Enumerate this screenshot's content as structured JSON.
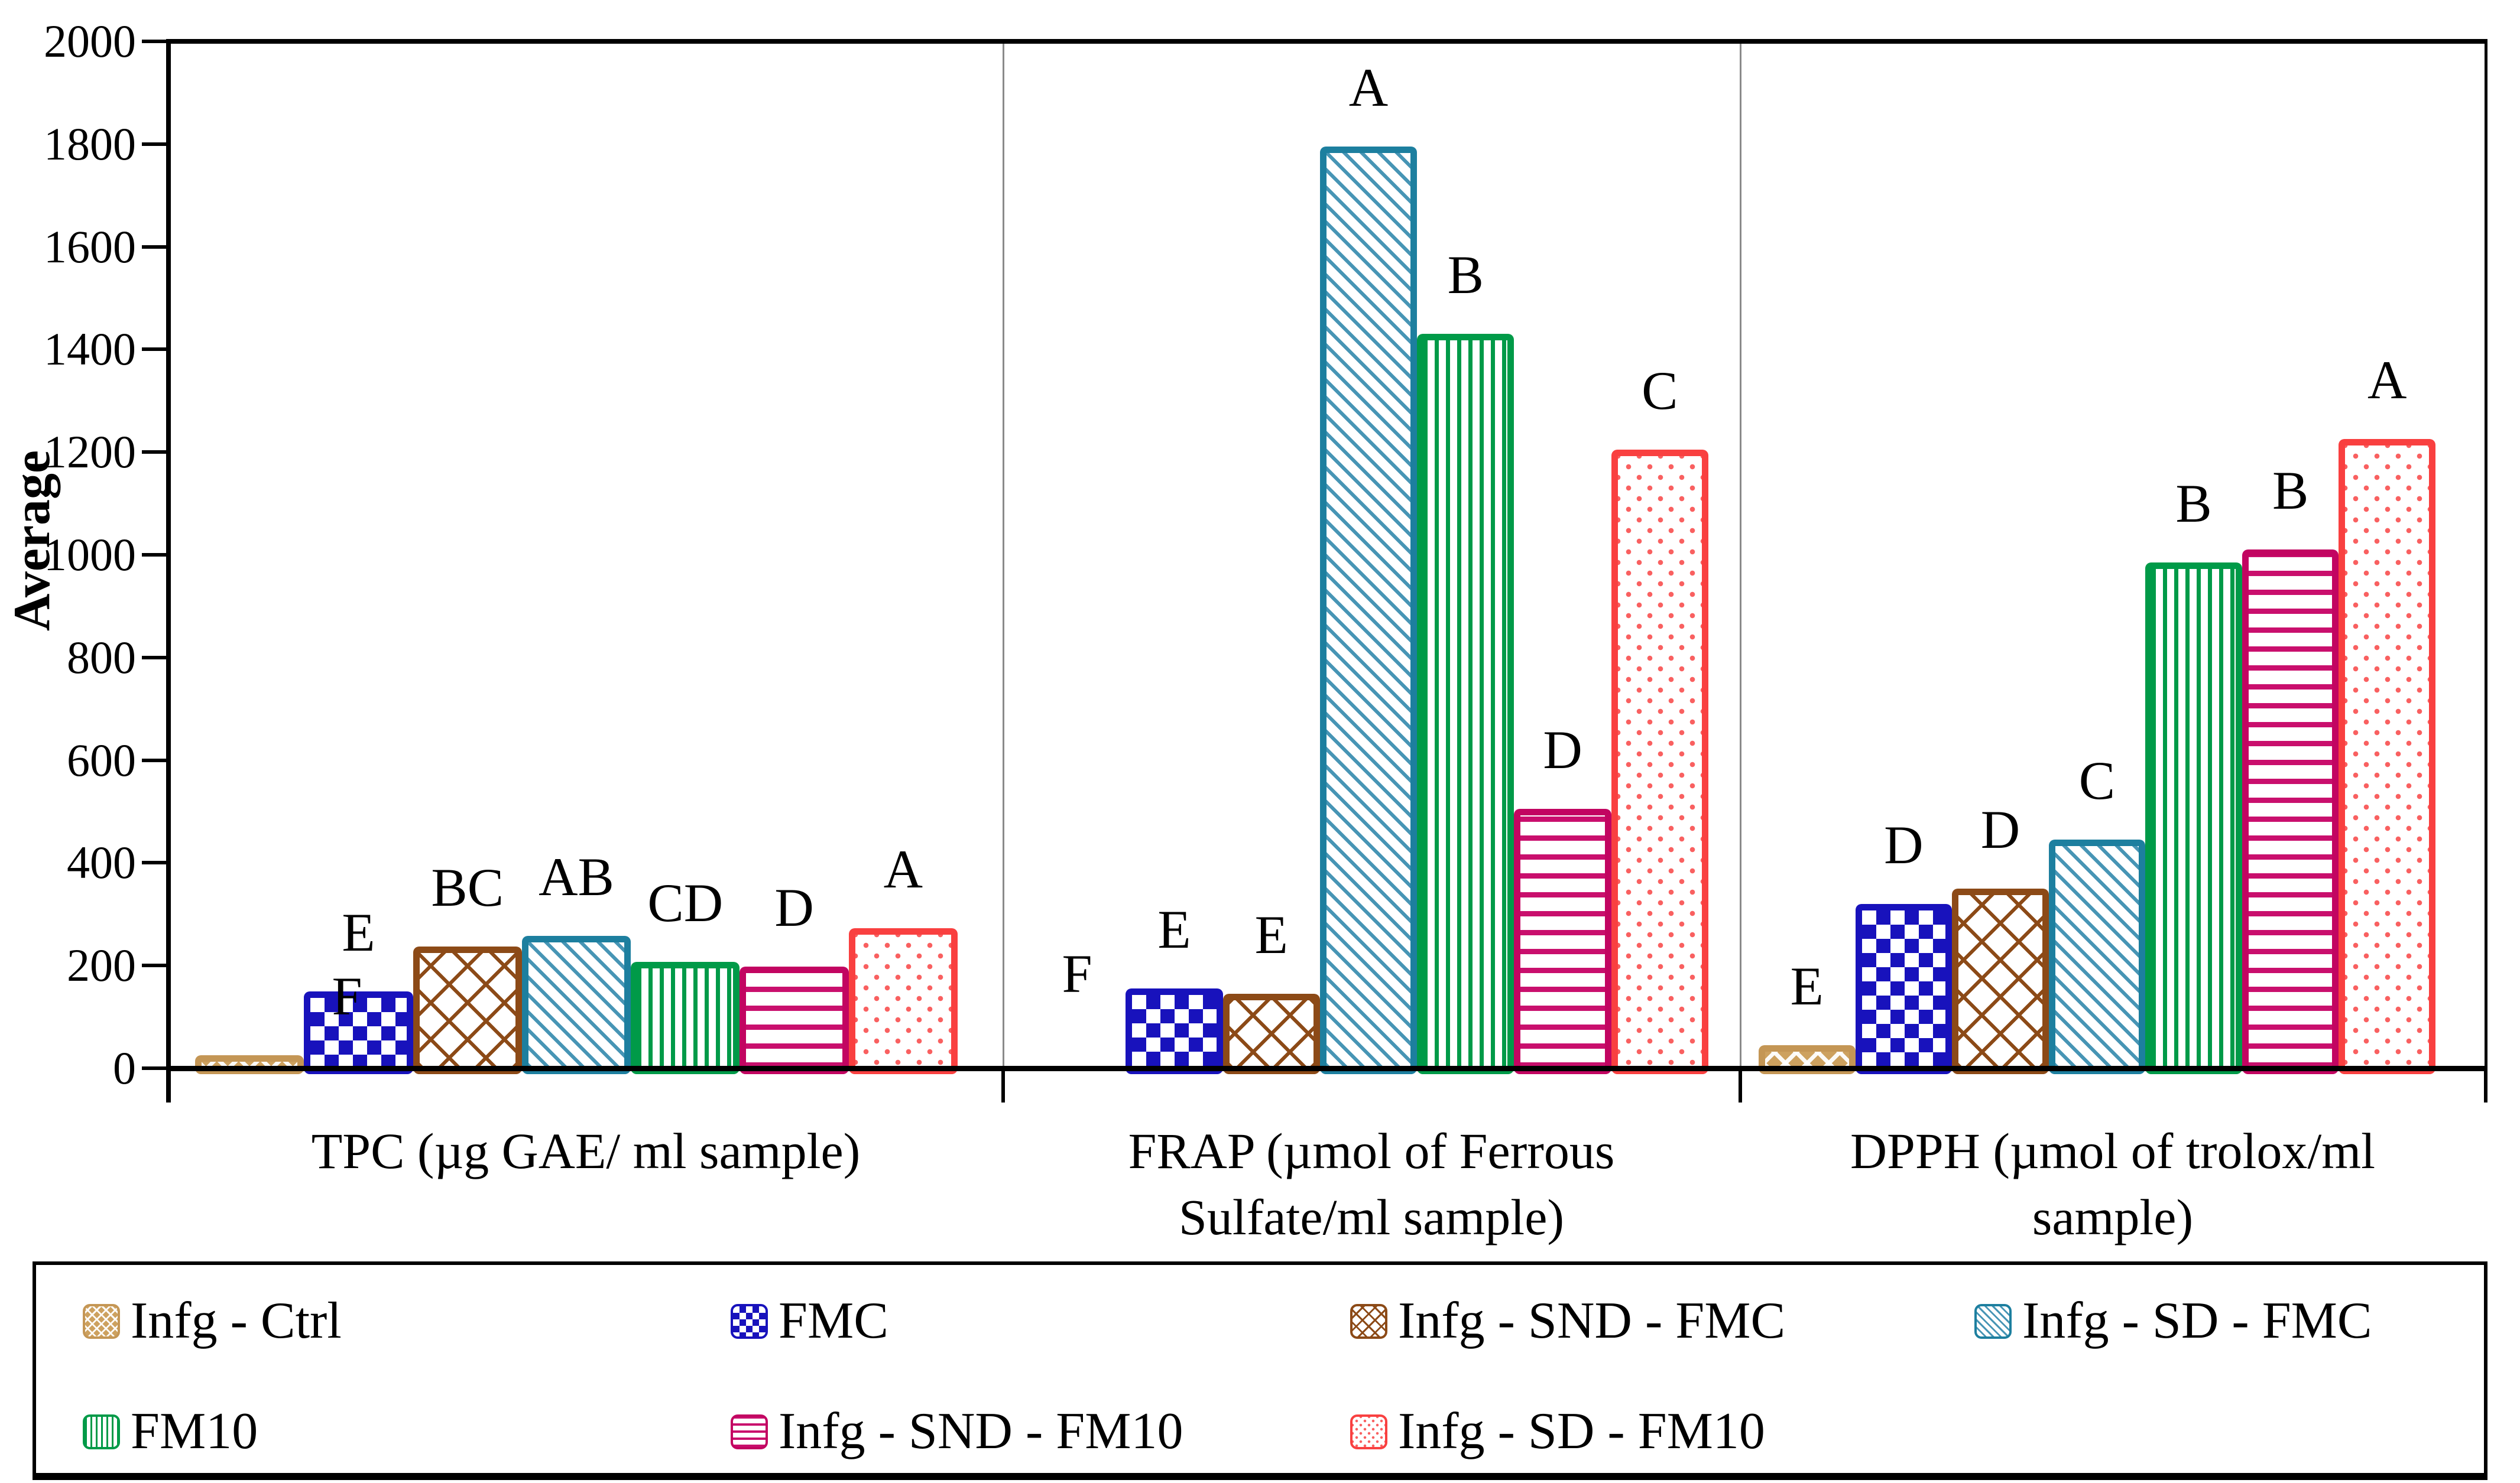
{
  "chart_data": {
    "type": "bar",
    "title": "",
    "xlabel": "",
    "ylabel": "Average",
    "ylim": [
      0,
      2000
    ],
    "ytick_step": 200,
    "grid": false,
    "legend_position": "bottom",
    "categories": [
      "TPC (µg GAE/ ml sample)",
      "FRAP (µmol of Ferrous Sulfate/ml sample)",
      "DPPH (µmol of trolox/ml sample)"
    ],
    "category_lines": [
      [
        "TPC (µg GAE/ ml sample)"
      ],
      [
        "FRAP (µmol of Ferrous",
        "Sulfate/ml sample)"
      ],
      [
        "DPPH (µmol of trolox/ml",
        "sample)"
      ]
    ],
    "series": [
      {
        "name": "Infg - Ctrl",
        "color": "#C49655",
        "pattern": "tan-weave",
        "values": [
          25,
          0,
          45
        ],
        "letters": [
          "F",
          "F",
          "E"
        ]
      },
      {
        "name": "FMC",
        "color": "#1812BC",
        "pattern": "blue-checker",
        "values": [
          150,
          155,
          320
        ],
        "letters": [
          "E",
          "E",
          "D"
        ]
      },
      {
        "name": "Infg - SND - FMC",
        "color": "#8C4A17",
        "pattern": "brown-lattice",
        "values": [
          237,
          145,
          350
        ],
        "letters": [
          "BC",
          "E",
          "D"
        ]
      },
      {
        "name": "Infg - SD - FMC",
        "color": "#1D7F9F",
        "pattern": "teal-diag",
        "values": [
          258,
          1795,
          445
        ],
        "letters": [
          "AB",
          "A",
          "C"
        ]
      },
      {
        "name": "FM10",
        "color": "#009A48",
        "pattern": "green-vstripe",
        "values": [
          207,
          1430,
          985
        ],
        "letters": [
          "CD",
          "B",
          "B"
        ]
      },
      {
        "name": "Infg - SND - FM10",
        "color": "#C20561",
        "pattern": "pink-hstripe",
        "values": [
          198,
          505,
          1010
        ],
        "letters": [
          "D",
          "D",
          "B"
        ]
      },
      {
        "name": "Infg - SD - FM10",
        "color": "#F94040",
        "pattern": "red-dots",
        "values": [
          273,
          1205,
          1225
        ],
        "letters": [
          "A",
          "C",
          "A"
        ]
      }
    ]
  },
  "legend": {
    "rows": [
      [
        "Infg - Ctrl",
        "FMC",
        "Infg - SND - FMC",
        "Infg - SD - FMC"
      ],
      [
        "FM10",
        "Infg - SND - FM10",
        "Infg - SD - FM10"
      ]
    ]
  },
  "colors": {
    "axis": "#000000",
    "panel_separator": "#8a8a8a",
    "background": "#ffffff"
  }
}
